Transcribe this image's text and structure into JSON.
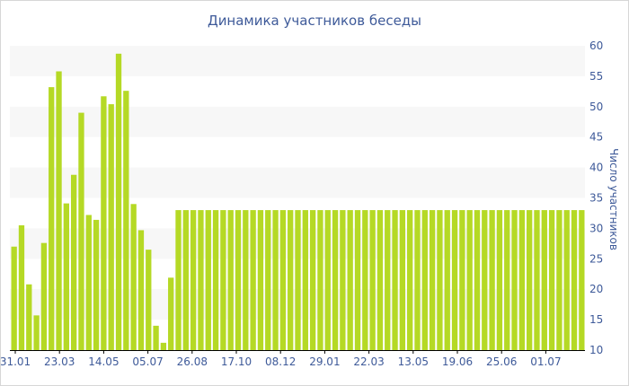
{
  "chart_data": {
    "type": "bar",
    "title": "Динамика участников беседы",
    "xlabel": "",
    "ylabel": "Число участников",
    "ylim": [
      10,
      60
    ],
    "yticks": [
      10,
      15,
      20,
      25,
      30,
      35,
      40,
      45,
      50,
      55,
      60
    ],
    "x_tick_labels": [
      "31.01",
      "23.03",
      "14.05",
      "05.07",
      "26.08",
      "17.10",
      "08.12",
      "29.01",
      "22.03",
      "13.05",
      "19.06",
      "25.06",
      "01.07"
    ],
    "values": [
      27,
      30.5,
      20.8,
      15.7,
      27.6,
      53.2,
      55.8,
      34.1,
      38.8,
      49,
      32.2,
      31.4,
      51.7,
      50.4,
      58.7,
      52.6,
      34,
      29.7,
      26.5,
      14,
      11.2,
      21.9,
      33,
      33,
      33,
      33,
      33,
      33,
      33,
      33,
      33,
      33,
      33,
      33,
      33,
      33,
      33,
      33,
      33,
      33,
      33,
      33,
      33,
      33,
      33,
      33,
      33,
      33,
      33,
      33,
      33,
      33,
      33,
      33,
      33,
      33,
      33,
      33,
      33,
      33,
      33,
      33,
      33,
      33,
      33,
      33,
      33,
      33,
      33,
      33,
      33,
      33,
      33,
      33,
      33,
      33,
      33
    ],
    "grid": "alternating horizontal bands",
    "legend": "none"
  },
  "colors": {
    "bar": "#b5d925",
    "band": "#f7f7f7",
    "text": "#3e5a99",
    "axis": "#000000"
  }
}
